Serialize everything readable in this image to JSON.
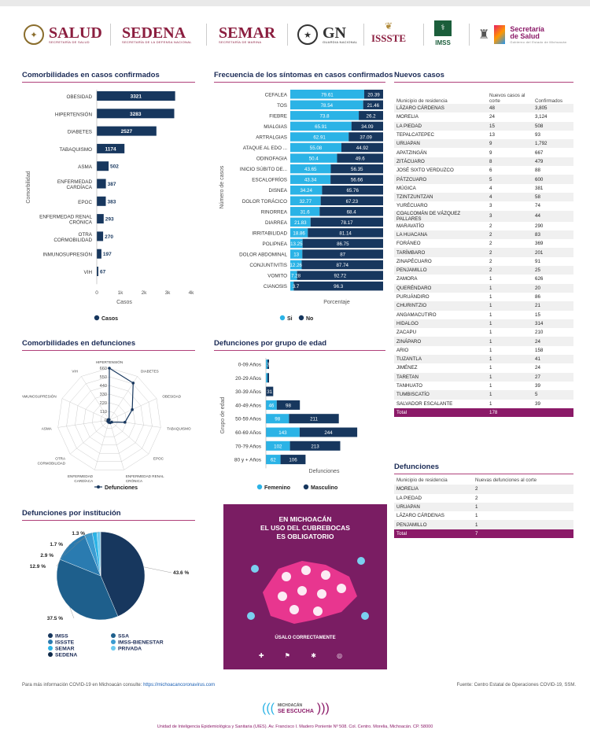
{
  "header": {
    "logos": [
      {
        "name": "SALUD",
        "sub": "SECRETARÍA DE SALUD",
        "color": "#8b1e3f"
      },
      {
        "name": "SEDENA",
        "sub": "SECRETARÍA DE LA DEFENSA NACIONAL",
        "color": "#8b1e3f"
      },
      {
        "name": "SEMAR",
        "sub": "SECRETARÍA DE MARINA",
        "color": "#8b1e3f"
      },
      {
        "name": "GN",
        "sub": "GUARDIA NACIONAL",
        "color": "#333333"
      },
      {
        "name": "ISSSTE",
        "sub": "",
        "color": "#8b1e3f"
      },
      {
        "name": "IMSS",
        "sub": "",
        "color": "#1b5e3b"
      },
      {
        "name": "Secretaría de Salud",
        "sub": "Gobierno del Estado de Michoacán",
        "color": "#8b1a68"
      }
    ]
  },
  "sections": {
    "comorb": "Comorbilidades en casos confirmados",
    "sint": "Frecuencia de los síntomas en casos confirmados",
    "nuevos": "Nuevos casos",
    "comorb_def": "Comorbilidades en defunciones",
    "edad": "Defunciones por grupo de edad",
    "inst": "Defunciones por institución",
    "def_tab": "Defunciones"
  },
  "chart_data": [
    {
      "id": "comorbilidades",
      "type": "bar",
      "orientation": "horizontal",
      "categories": [
        "OBESIDAD",
        "HIPERTENSIÓN",
        "DIABETES",
        "TABAQUISMO",
        "ASMA",
        "ENFERMEDAD CARDÍACA",
        "EPOC",
        "ENFERMEDAD RENAL CRÓNICA",
        "OTRA CORMOBILIDAD",
        "INMUNOSUPRESIÓN",
        "VIH"
      ],
      "values": [
        3321,
        3283,
        2527,
        1174,
        502,
        387,
        383,
        293,
        270,
        197,
        67
      ],
      "value_labels": [
        "3321",
        "3283",
        "2527",
        "1174",
        "502",
        "387",
        "383",
        "293",
        "270",
        "197",
        "67"
      ],
      "xlabel": "Casos",
      "ylabel": "Comorbilidad",
      "xticks": [
        "0",
        "1k",
        "2k",
        "3k",
        "4k"
      ],
      "xlim": [
        0,
        4000
      ],
      "legend": [
        "Casos"
      ],
      "color": "#17375e"
    },
    {
      "id": "sintomas",
      "type": "bar",
      "orientation": "horizontal",
      "stacked": true,
      "categories": [
        "CEFALEA",
        "TOS",
        "FIEBRE",
        "MIALGIAS",
        "ARTRALGIAS",
        "ATAQUE AL EDO ...",
        "ODINOFAGIA",
        "INICIO SÚBITO DE...",
        "ESCALOFRÍOS",
        "DISNEA",
        "DOLOR TORÁCICO",
        "RINORREA",
        "DIARREA",
        "IRRITABILIDAD",
        "POLIPNEA",
        "DOLOR ABDOMINAL",
        "CONJUNTIVITIS",
        "VOMITO",
        "CIANOSIS"
      ],
      "series": [
        {
          "name": "Si",
          "values": [
            79.61,
            78.54,
            73.8,
            65.91,
            62.91,
            55.08,
            50.4,
            43.65,
            43.34,
            34.24,
            32.77,
            31.6,
            21.83,
            18.86,
            13.25,
            13,
            12.26,
            7.28,
            3.7
          ],
          "color": "#2bb3e6"
        },
        {
          "name": "No",
          "values": [
            20.39,
            21.46,
            26.2,
            34.09,
            37.09,
            44.92,
            49.6,
            56.35,
            56.66,
            65.76,
            67.23,
            68.4,
            78.17,
            81.14,
            86.75,
            87,
            87.74,
            92.72,
            96.3
          ],
          "color": "#17375e"
        }
      ],
      "labels_si": [
        "79.61",
        "78.54",
        "73.8",
        "65.91",
        "62.91",
        "55.08",
        "50.4",
        "43.65",
        "43.34",
        "34.24",
        "32.77",
        "31.6",
        "21.83",
        "18.86",
        "13.25",
        "13",
        "12.26",
        "7.28",
        "3.7"
      ],
      "labels_no": [
        "20.39",
        "21.46",
        "26.2",
        "34.09",
        "37.09",
        "44.92",
        "49.6",
        "56.35",
        "56.66",
        "65.76",
        "67.23",
        "68.4",
        "78.17",
        "81.14",
        "86.75",
        "87",
        "87.74",
        "92.72",
        "96.3"
      ],
      "xlabel": "Porcentaje",
      "ylabel": "Número de casos",
      "xlim": [
        0,
        100
      ]
    },
    {
      "id": "comorb_def",
      "type": "radar",
      "categories": [
        "HIPERTENSIÓN",
        "DIABETES",
        "OBESIDAD",
        "TABAQUISMO",
        "EPOC",
        "ENFERMEDAD RENAL CRÓNICA",
        "ENFERMEDAD CARDÍACA",
        "OTRA CORMOBILIDAD",
        "ASMA",
        "INMUNOSUPRESIÓN",
        "VIH"
      ],
      "values": [
        660,
        560,
        320,
        200,
        40,
        35,
        30,
        25,
        15,
        15,
        5
      ],
      "ticks": [
        "660",
        "550",
        "440",
        "330",
        "220",
        "110",
        "0"
      ],
      "rmax": 660,
      "legend": [
        "Defunciones"
      ],
      "color": "#17375e"
    },
    {
      "id": "edad",
      "type": "bar",
      "orientation": "horizontal",
      "stacked": true,
      "categories": [
        "0-09 Años",
        "20-29 Años",
        "30-39 Años",
        "40-49 Años",
        "50-59 Años",
        "60-69 Años",
        "70-79 Años",
        "80 y + Años"
      ],
      "series": [
        {
          "name": "Femenino",
          "values": [
            1,
            3,
            0,
            46,
            98,
            143,
            102,
            62
          ],
          "color": "#2bb3e6"
        },
        {
          "name": "Masculino",
          "values": [
            3,
            4,
            31,
            98,
            211,
            244,
            213,
            106
          ],
          "color": "#17375e"
        }
      ],
      "labels_f": [
        "",
        "",
        "",
        "46",
        "98",
        "143",
        "102",
        "62"
      ],
      "labels_m": [
        "3",
        "",
        "31",
        "98",
        "211",
        "244",
        "213",
        "106"
      ],
      "xlabel": "Defunciones",
      "ylabel": "Grupo de edad"
    },
    {
      "id": "institucion",
      "type": "pie",
      "labels": [
        "IMSS",
        "SSA",
        "ISSSTE",
        "IMSS-BIENESTAR",
        "SEMAR",
        "PRIVADA",
        "SEDENA"
      ],
      "values": [
        43.6,
        37.5,
        12.9,
        2.9,
        1.7,
        1.3,
        0.1
      ],
      "pct_labels": [
        "43.6 %",
        "37.5 %",
        "12.9 %",
        "2.9 %",
        "1.7 %",
        "1.3 %",
        ""
      ],
      "colors": [
        "#17375e",
        "#1e5f8c",
        "#2a7bb0",
        "#3b9bd1",
        "#2bb3e6",
        "#6cc9ef",
        "#0f2a4a"
      ]
    }
  ],
  "tables": {
    "nuevos": {
      "headers": [
        "Municipio de residencia",
        "Nuevos casos al corte",
        "Confirmados"
      ],
      "rows": [
        [
          "LÁZARO CÁRDENAS",
          "48",
          "3,805"
        ],
        [
          "MORELIA",
          "24",
          "3,124"
        ],
        [
          "LA PIEDAD",
          "15",
          "508"
        ],
        [
          "TEPALCATEPEC",
          "13",
          "93"
        ],
        [
          "URUAPAN",
          "9",
          "1,792"
        ],
        [
          "APATZINGÁN",
          "9",
          "667"
        ],
        [
          "ZITÁCUARO",
          "8",
          "479"
        ],
        [
          "JOSÉ SIXTO VERDUZCO",
          "6",
          "88"
        ],
        [
          "PÁTZCUARO",
          "5",
          "600"
        ],
        [
          "MÚGICA",
          "4",
          "381"
        ],
        [
          "TZINTZUNTZAN",
          "4",
          "58"
        ],
        [
          "YURÉCUARO",
          "3",
          "74"
        ],
        [
          "COALCOMÁN DE VÁZQUEZ PALLARES",
          "3",
          "44"
        ],
        [
          "MARAVATÍO",
          "2",
          "290"
        ],
        [
          "LA HUACANA",
          "2",
          "83"
        ],
        [
          "FORÁNEO",
          "2",
          "369"
        ],
        [
          "TARÍMBARO",
          "2",
          "201"
        ],
        [
          "ZINAPÉCUARO",
          "2",
          "91"
        ],
        [
          "PENJAMILLO",
          "2",
          "25"
        ],
        [
          "ZAMORA",
          "1",
          "626"
        ],
        [
          "QUERÉNDARO",
          "1",
          "20"
        ],
        [
          "PURUÁNDIRO",
          "1",
          "86"
        ],
        [
          "CHURINTZIO",
          "1",
          "21"
        ],
        [
          "ANGAMACUTIRO",
          "1",
          "15"
        ],
        [
          "HIDALGO",
          "1",
          "314"
        ],
        [
          "ZACAPU",
          "1",
          "210"
        ],
        [
          "ZINÁPARO",
          "1",
          "24"
        ],
        [
          "ARIO",
          "1",
          "158"
        ],
        [
          "TUZANTLA",
          "1",
          "41"
        ],
        [
          "JIMÉNEZ",
          "1",
          "24"
        ],
        [
          "TARETAN",
          "1",
          "27"
        ],
        [
          "TANHUATO",
          "1",
          "39"
        ],
        [
          "TUMBISCATÍO",
          "1",
          "5"
        ],
        [
          "SALVADOR ESCALANTE",
          "1",
          "39"
        ]
      ],
      "total": [
        "Total",
        "178",
        ""
      ]
    },
    "defunciones": {
      "headers": [
        "Municipio de residencia",
        "Nuevas defunciones al corte"
      ],
      "rows": [
        [
          "MORELIA",
          "2"
        ],
        [
          "LA PIEDAD",
          "2"
        ],
        [
          "URUAPAN",
          "1"
        ],
        [
          "LÁZARO CÁRDENAS",
          "1"
        ],
        [
          "PENJAMILLO",
          "1"
        ]
      ],
      "total": [
        "Total",
        "7"
      ]
    }
  },
  "poster": {
    "line1": "EN MICHOACÁN",
    "line2": "EL USO DEL CUBREBOCAS",
    "line3": "ES OBLIGATORIO",
    "cta": "ÚSALO CORRECTAMENTE"
  },
  "footer": {
    "info_text": "Para más información COVID-19 en Michoacán consulte: ",
    "info_link": "https://michoacancoronavirus.com",
    "source": "Fuente: Centro Estatal de Operaciones COVID-19, SSM.",
    "brand_top": "MICHOACÁN",
    "brand_bottom": "SE ESCUCHA",
    "address": "Unidad de Inteligencia Epidemiológica y Sanitaria (UIES). Av. Francisco I. Madero Poniente Nº 508. Col. Centro. Morelia, Michoacán. CP. 58000"
  }
}
